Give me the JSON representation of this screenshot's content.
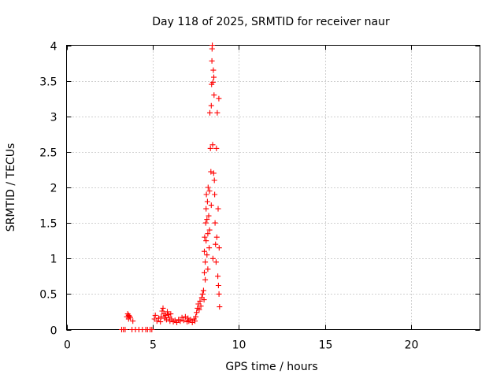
{
  "chart_data": {
    "type": "scatter",
    "title": "Day 118 of 2025, SRMTID for receiver naur",
    "xlabel": "GPS time / hours",
    "ylabel": "SRMTID / TECUs",
    "xlim": [
      0,
      24
    ],
    "ylim": [
      0,
      4
    ],
    "xticks": [
      0,
      5,
      10,
      15,
      20
    ],
    "xtick_labels": [
      "0",
      "5",
      "10",
      "15",
      "20"
    ],
    "yticks": [
      0,
      0.5,
      1,
      1.5,
      2,
      2.5,
      3,
      3.5,
      4
    ],
    "ytick_labels": [
      "0",
      "0.5",
      "1",
      "1.5",
      "2",
      "2.5",
      "3",
      "3.5",
      "4"
    ],
    "grid": true,
    "marker": "+",
    "color": "#ff0000",
    "series": [
      {
        "name": "SRMTID",
        "points": [
          [
            3.2,
            0.0
          ],
          [
            3.3,
            0.0
          ],
          [
            3.4,
            0.0
          ],
          [
            3.5,
            0.18
          ],
          [
            3.55,
            0.22
          ],
          [
            3.6,
            0.2
          ],
          [
            3.6,
            0.15
          ],
          [
            3.65,
            0.19
          ],
          [
            3.7,
            0.17
          ],
          [
            3.8,
            0.0
          ],
          [
            3.85,
            0.12
          ],
          [
            4.0,
            0.0
          ],
          [
            4.2,
            0.0
          ],
          [
            4.4,
            0.0
          ],
          [
            4.6,
            0.0
          ],
          [
            4.7,
            0.0
          ],
          [
            4.85,
            0.0
          ],
          [
            4.95,
            0.0
          ],
          [
            5.1,
            0.15
          ],
          [
            5.15,
            0.2
          ],
          [
            5.25,
            0.12
          ],
          [
            5.35,
            0.16
          ],
          [
            5.45,
            0.11
          ],
          [
            5.5,
            0.18
          ],
          [
            5.55,
            0.26
          ],
          [
            5.6,
            0.3
          ],
          [
            5.65,
            0.22
          ],
          [
            5.7,
            0.16
          ],
          [
            5.75,
            0.2
          ],
          [
            5.8,
            0.14
          ],
          [
            5.85,
            0.25
          ],
          [
            5.9,
            0.21
          ],
          [
            5.95,
            0.17
          ],
          [
            6.0,
            0.12
          ],
          [
            6.05,
            0.22
          ],
          [
            6.1,
            0.15
          ],
          [
            6.2,
            0.11
          ],
          [
            6.3,
            0.13
          ],
          [
            6.4,
            0.1
          ],
          [
            6.5,
            0.14
          ],
          [
            6.6,
            0.12
          ],
          [
            6.7,
            0.17
          ],
          [
            6.8,
            0.13
          ],
          [
            6.9,
            0.18
          ],
          [
            7.0,
            0.11
          ],
          [
            7.05,
            0.16
          ],
          [
            7.1,
            0.12
          ],
          [
            7.2,
            0.14
          ],
          [
            7.3,
            0.1
          ],
          [
            7.4,
            0.15
          ],
          [
            7.45,
            0.12
          ],
          [
            7.5,
            0.18
          ],
          [
            7.55,
            0.24
          ],
          [
            7.6,
            0.3
          ],
          [
            7.65,
            0.36
          ],
          [
            7.7,
            0.28
          ],
          [
            7.75,
            0.4
          ],
          [
            7.8,
            0.33
          ],
          [
            7.85,
            0.45
          ],
          [
            7.9,
            0.5
          ],
          [
            7.95,
            0.55
          ],
          [
            7.98,
            0.42
          ],
          [
            8.0,
            0.8
          ],
          [
            8.0,
            1.1
          ],
          [
            8.02,
            1.3
          ],
          [
            8.05,
            0.7
          ],
          [
            8.05,
            0.95
          ],
          [
            8.08,
            1.5
          ],
          [
            8.1,
            1.7
          ],
          [
            8.1,
            1.25
          ],
          [
            8.12,
            1.9
          ],
          [
            8.15,
            1.05
          ],
          [
            8.15,
            1.55
          ],
          [
            8.18,
            1.8
          ],
          [
            8.2,
            0.85
          ],
          [
            8.2,
            1.35
          ],
          [
            8.22,
            2.0
          ],
          [
            8.25,
            1.6
          ],
          [
            8.28,
            1.15
          ],
          [
            8.3,
            1.95
          ],
          [
            8.3,
            1.4
          ],
          [
            8.32,
            3.05
          ],
          [
            8.35,
            2.55
          ],
          [
            8.38,
            2.22
          ],
          [
            8.4,
            1.75
          ],
          [
            8.4,
            3.15
          ],
          [
            8.42,
            3.45
          ],
          [
            8.44,
            3.78
          ],
          [
            8.45,
            3.95
          ],
          [
            8.46,
            4.0
          ],
          [
            8.48,
            2.6
          ],
          [
            8.5,
            3.48
          ],
          [
            8.5,
            1.0
          ],
          [
            8.52,
            3.65
          ],
          [
            8.54,
            2.2
          ],
          [
            8.55,
            3.55
          ],
          [
            8.56,
            3.3
          ],
          [
            8.58,
            2.1
          ],
          [
            8.6,
            1.9
          ],
          [
            8.62,
            1.5
          ],
          [
            8.65,
            1.2
          ],
          [
            8.68,
            0.95
          ],
          [
            8.7,
            2.55
          ],
          [
            8.72,
            1.3
          ],
          [
            8.75,
            3.05
          ],
          [
            8.78,
            0.75
          ],
          [
            8.8,
            1.7
          ],
          [
            8.82,
            0.62
          ],
          [
            8.84,
            3.25
          ],
          [
            8.85,
            0.5
          ],
          [
            8.86,
            1.15
          ],
          [
            8.88,
            0.32
          ]
        ]
      }
    ]
  }
}
